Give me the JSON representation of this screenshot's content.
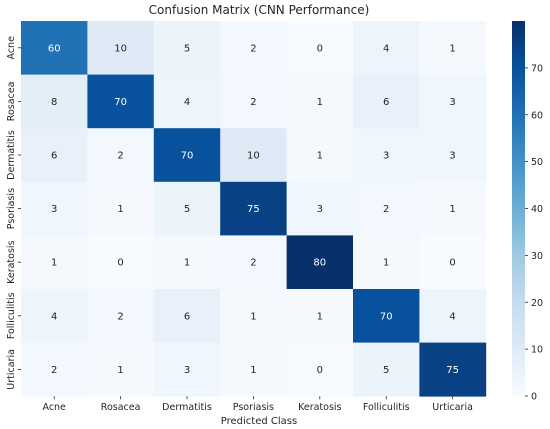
{
  "chart_data": {
    "type": "heatmap",
    "title": "Confusion Matrix (CNN Performance)",
    "xlabel": "Predicted Class",
    "ylabel": "",
    "x_categories": [
      "Acne",
      "Rosacea",
      "Dermatitis",
      "Psoriasis",
      "Keratosis",
      "Folliculitis",
      "Urticaria"
    ],
    "y_categories": [
      "Acne",
      "Rosacea",
      "Dermatitis",
      "Psoriasis",
      "Keratosis",
      "Folliculitis",
      "Urticaria"
    ],
    "values": [
      [
        60,
        10,
        5,
        2,
        0,
        4,
        1
      ],
      [
        8,
        70,
        4,
        2,
        1,
        6,
        3
      ],
      [
        6,
        2,
        70,
        10,
        1,
        3,
        3
      ],
      [
        3,
        1,
        5,
        75,
        3,
        2,
        1
      ],
      [
        1,
        0,
        1,
        2,
        80,
        1,
        0
      ],
      [
        4,
        2,
        6,
        1,
        1,
        70,
        4
      ],
      [
        2,
        1,
        3,
        1,
        0,
        5,
        75
      ]
    ],
    "colorbar": {
      "min": 0,
      "max": 80,
      "ticks": [
        0,
        10,
        20,
        30,
        40,
        50,
        60,
        70
      ]
    },
    "colormap": "Blues",
    "grid": false
  }
}
